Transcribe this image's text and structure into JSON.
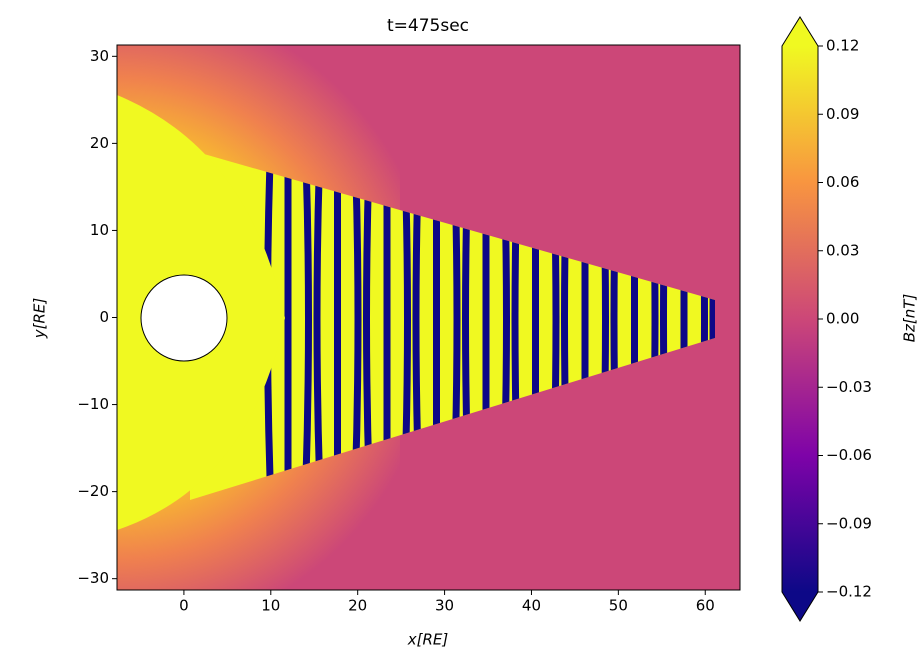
{
  "chart_data": {
    "type": "heatmap",
    "title": "t=475sec",
    "x_label": "x[RE]",
    "y_label": "y[RE]",
    "colorbar_label": "Bz[nT]",
    "xlim": [
      -7.7,
      64
    ],
    "ylim": [
      -31.3,
      31.3
    ],
    "xticks": [
      0,
      10,
      20,
      30,
      40,
      50,
      60
    ],
    "yticks": [
      {
        "value": -30,
        "label": "−30"
      },
      {
        "value": -20,
        "label": "−20"
      },
      {
        "value": -10,
        "label": "−10"
      },
      0,
      10,
      20,
      30
    ],
    "clim": [
      -0.12,
      0.12
    ],
    "colorbar_extend": "both",
    "cticks": [
      {
        "value": -0.12,
        "label": "−0.12"
      },
      {
        "value": -0.09,
        "label": "−0.09"
      },
      {
        "value": -0.06,
        "label": "−0.06"
      },
      {
        "value": -0.03,
        "label": "−0.03"
      },
      {
        "value": 0,
        "label": "0.00"
      },
      0.03,
      0.06,
      0.09,
      0.12
    ],
    "colormap": [
      "#0d0887",
      "#7e03a8",
      "#cc4778",
      "#f89540",
      "#f0f921"
    ]
  }
}
